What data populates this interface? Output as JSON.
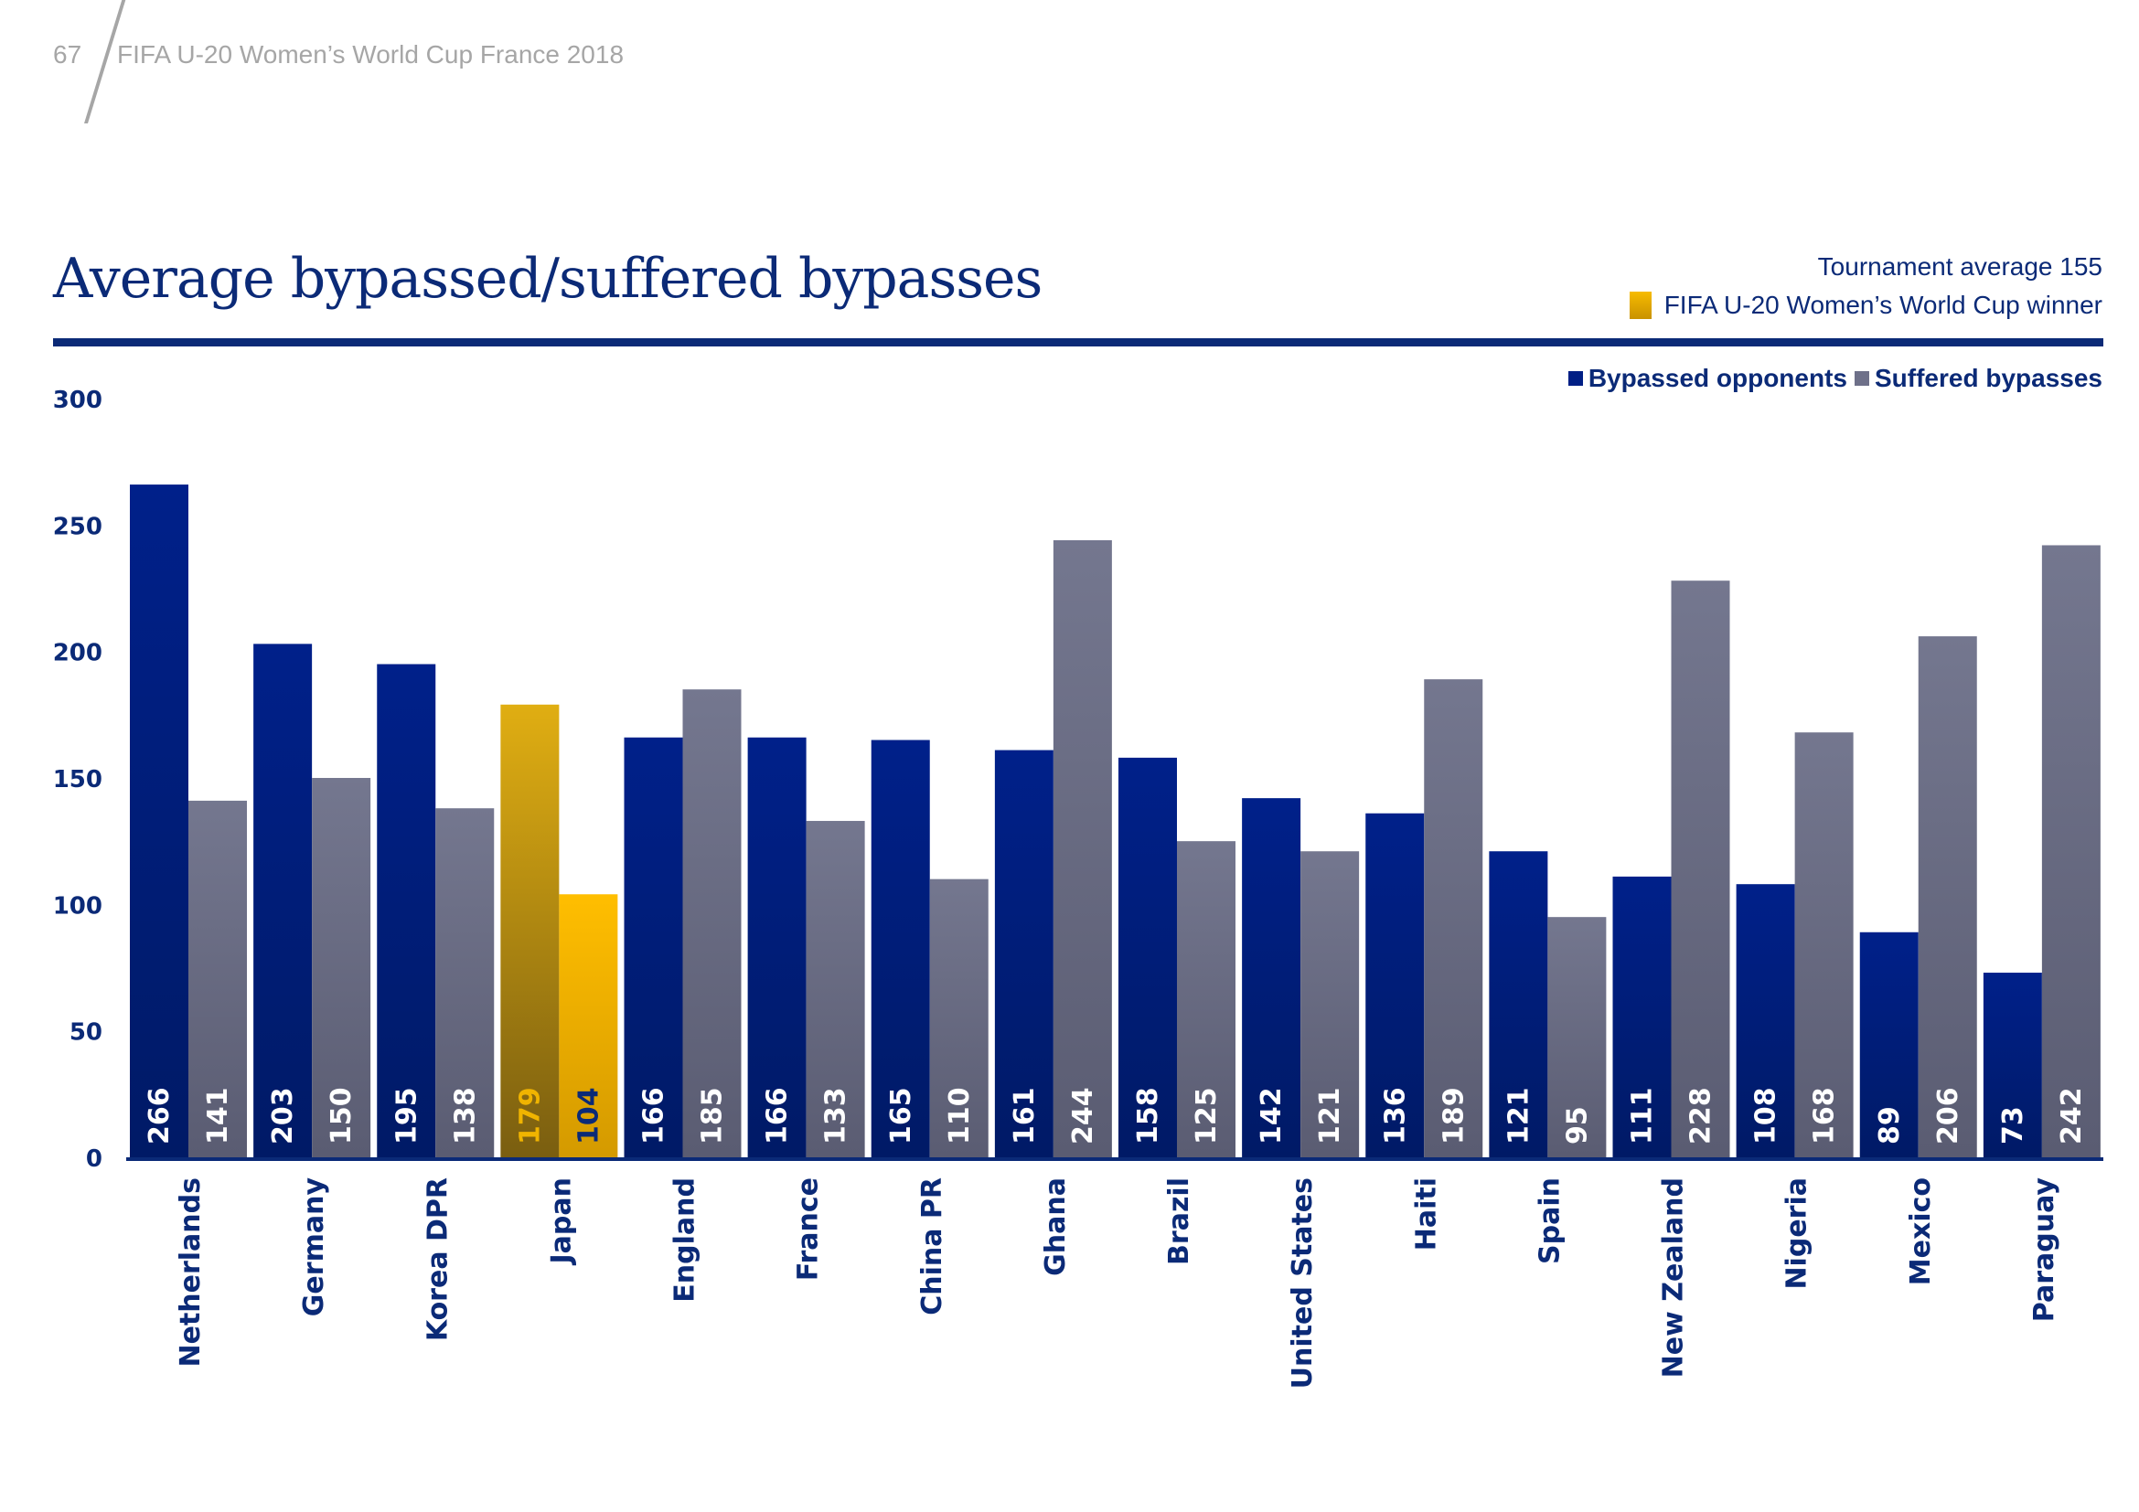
{
  "page_header": {
    "page_number": "67",
    "document_title": "FIFA U-20 Women’s World Cup France 2018"
  },
  "legend": {
    "tournament_average": "Tournament average 155",
    "winner_label": "FIFA U-20 Women’s World Cup winner",
    "series_1_label": "Bypassed opponents",
    "series_2_label": "Suffered bypasses"
  },
  "colors": {
    "bypassed": "#001f85",
    "suffered": "#6e7089",
    "winner_bypassed": "#d9a400",
    "winner_suffered": "#ffbe00",
    "text": "#0b2a77"
  },
  "chart_data": {
    "type": "bar",
    "title": "Average bypassed/suffered bypasses",
    "xlabel": "",
    "ylabel": "",
    "ylim": [
      0,
      300
    ],
    "yticks": [
      0,
      50,
      100,
      150,
      200,
      250,
      300
    ],
    "grid": false,
    "legend_position": "top-right",
    "highlighted_category": "Japan",
    "tournament_average": 155,
    "categories": [
      "Netherlands",
      "Germany",
      "Korea DPR",
      "Japan",
      "England",
      "France",
      "China PR",
      "Ghana",
      "Brazil",
      "United States",
      "Haiti",
      "Spain",
      "New Zealand",
      "Nigeria",
      "Mexico",
      "Paraguay"
    ],
    "series": [
      {
        "name": "Bypassed opponents",
        "values": [
          266,
          203,
          195,
          179,
          166,
          166,
          165,
          161,
          158,
          142,
          136,
          121,
          111,
          108,
          89,
          73
        ]
      },
      {
        "name": "Suffered bypasses",
        "values": [
          141,
          150,
          138,
          104,
          185,
          133,
          110,
          244,
          125,
          121,
          189,
          95,
          228,
          168,
          206,
          242
        ]
      }
    ]
  }
}
